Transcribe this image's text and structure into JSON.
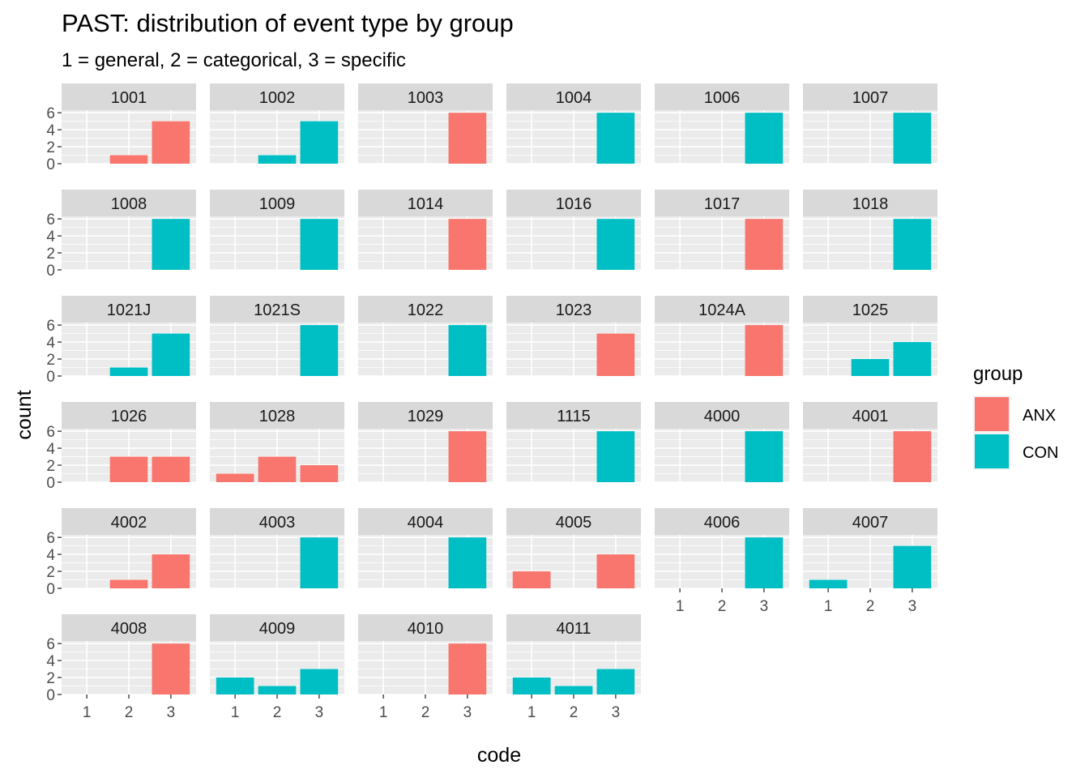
{
  "chart_data": {
    "type": "bar",
    "title": "PAST: distribution of event type by group",
    "subtitle": "1 = general, 2 = categorical, 3 = specific",
    "xlabel": "code",
    "ylabel": "count",
    "categories": [
      "1",
      "2",
      "3"
    ],
    "yticks": [
      "0",
      "2",
      "4",
      "6"
    ],
    "ylim": [
      0,
      6.3
    ],
    "grid": true,
    "legend": {
      "title": "group",
      "placement": "right",
      "items": [
        {
          "label": "ANX",
          "color": "#F8766D"
        },
        {
          "label": "CON",
          "color": "#00BFC4"
        }
      ]
    },
    "colors": {
      "ANX": "#F8766D",
      "CON": "#00BFC4"
    },
    "facets": [
      {
        "id": "1001",
        "group": "ANX",
        "values": [
          0,
          1,
          5
        ]
      },
      {
        "id": "1002",
        "group": "CON",
        "values": [
          0,
          1,
          5
        ]
      },
      {
        "id": "1003",
        "group": "ANX",
        "values": [
          0,
          0,
          6
        ]
      },
      {
        "id": "1004",
        "group": "CON",
        "values": [
          0,
          0,
          6
        ]
      },
      {
        "id": "1006",
        "group": "CON",
        "values": [
          0,
          0,
          6
        ]
      },
      {
        "id": "1007",
        "group": "CON",
        "values": [
          0,
          0,
          6
        ]
      },
      {
        "id": "1008",
        "group": "CON",
        "values": [
          0,
          0,
          6
        ]
      },
      {
        "id": "1009",
        "group": "CON",
        "values": [
          0,
          0,
          6
        ]
      },
      {
        "id": "1014",
        "group": "ANX",
        "values": [
          0,
          0,
          6
        ]
      },
      {
        "id": "1016",
        "group": "CON",
        "values": [
          0,
          0,
          6
        ]
      },
      {
        "id": "1017",
        "group": "ANX",
        "values": [
          0,
          0,
          6
        ]
      },
      {
        "id": "1018",
        "group": "CON",
        "values": [
          0,
          0,
          6
        ]
      },
      {
        "id": "1021J",
        "group": "CON",
        "values": [
          0,
          1,
          5
        ]
      },
      {
        "id": "1021S",
        "group": "CON",
        "values": [
          0,
          0,
          6
        ]
      },
      {
        "id": "1022",
        "group": "CON",
        "values": [
          0,
          0,
          6
        ]
      },
      {
        "id": "1023",
        "group": "ANX",
        "values": [
          0,
          0,
          5
        ]
      },
      {
        "id": "1024A",
        "group": "ANX",
        "values": [
          0,
          0,
          6
        ]
      },
      {
        "id": "1025",
        "group": "CON",
        "values": [
          0,
          2,
          4
        ]
      },
      {
        "id": "1026",
        "group": "ANX",
        "values": [
          0,
          3,
          3
        ]
      },
      {
        "id": "1028",
        "group": "ANX",
        "values": [
          1,
          3,
          2
        ]
      },
      {
        "id": "1029",
        "group": "ANX",
        "values": [
          0,
          0,
          6
        ]
      },
      {
        "id": "1115",
        "group": "CON",
        "values": [
          0,
          0,
          6
        ]
      },
      {
        "id": "4000",
        "group": "CON",
        "values": [
          0,
          0,
          6
        ]
      },
      {
        "id": "4001",
        "group": "ANX",
        "values": [
          0,
          0,
          6
        ]
      },
      {
        "id": "4002",
        "group": "ANX",
        "values": [
          0,
          1,
          4
        ]
      },
      {
        "id": "4003",
        "group": "CON",
        "values": [
          0,
          0,
          6
        ]
      },
      {
        "id": "4004",
        "group": "CON",
        "values": [
          0,
          0,
          6
        ]
      },
      {
        "id": "4005",
        "group": "ANX",
        "values": [
          2,
          0,
          4
        ]
      },
      {
        "id": "4006",
        "group": "CON",
        "values": [
          0,
          0,
          6
        ]
      },
      {
        "id": "4007",
        "group": "CON",
        "values": [
          1,
          0,
          5
        ]
      },
      {
        "id": "4008",
        "group": "ANX",
        "values": [
          0,
          0,
          6
        ]
      },
      {
        "id": "4009",
        "group": "CON",
        "values": [
          2,
          1,
          3
        ]
      },
      {
        "id": "4010",
        "group": "ANX",
        "values": [
          0,
          0,
          6
        ]
      },
      {
        "id": "4011",
        "group": "CON",
        "values": [
          2,
          1,
          3
        ]
      }
    ]
  }
}
